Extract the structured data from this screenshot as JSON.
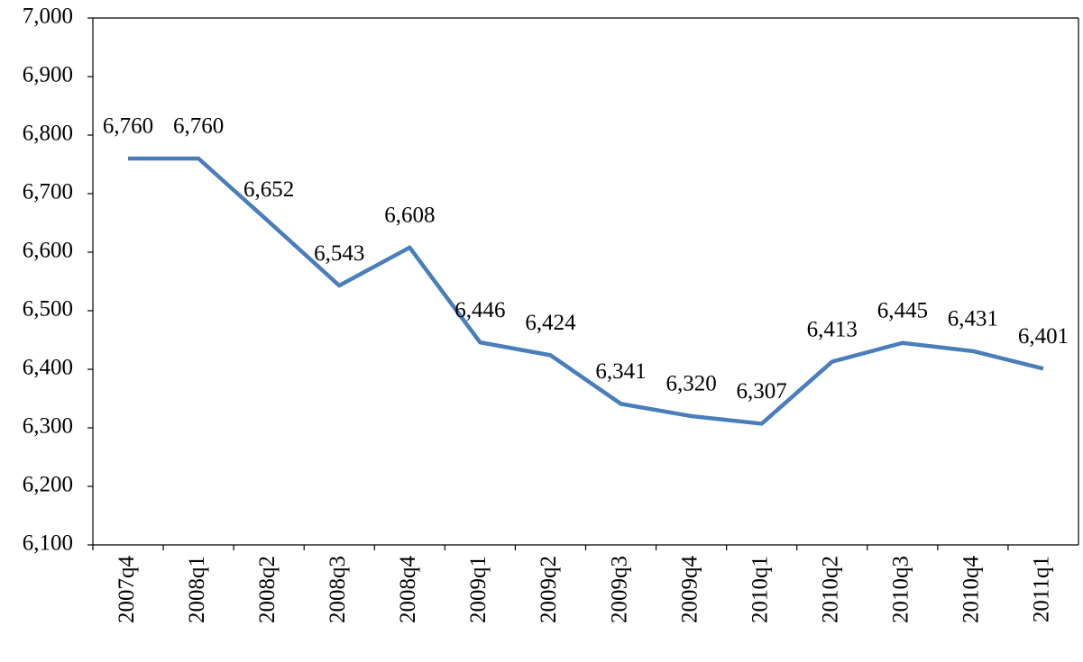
{
  "chart_data": {
    "type": "line",
    "categories": [
      "2007q4",
      "2008q1",
      "2008q2",
      "2008q3",
      "2008q4",
      "2009q1",
      "2009q2",
      "2009q3",
      "2009q4",
      "2010q1",
      "2010q2",
      "2010q3",
      "2010q4",
      "2011q1"
    ],
    "values": [
      6760,
      6760,
      6652,
      6543,
      6608,
      6446,
      6424,
      6341,
      6320,
      6307,
      6413,
      6445,
      6431,
      6401
    ],
    "value_labels": [
      "6,760",
      "6,760",
      "6,652",
      "6,543",
      "6,608",
      "6,446",
      "6,424",
      "6,341",
      "6,320",
      "6,307",
      "6,413",
      "6,445",
      "6,431",
      "6,401"
    ],
    "color": "#4a7ebb",
    "ylim": [
      6100,
      7000
    ],
    "yticks": [
      {
        "value": 6100,
        "label": "6,100"
      },
      {
        "value": 6200,
        "label": "6,200"
      },
      {
        "value": 6300,
        "label": "6,300"
      },
      {
        "value": 6400,
        "label": "6,400"
      },
      {
        "value": 6500,
        "label": "6,500"
      },
      {
        "value": 6600,
        "label": "6,600"
      },
      {
        "value": 6700,
        "label": "6,700"
      },
      {
        "value": 6800,
        "label": "6,800"
      },
      {
        "value": 6900,
        "label": "6,900"
      },
      {
        "value": 7000,
        "label": "7,000"
      }
    ],
    "grid": false
  }
}
